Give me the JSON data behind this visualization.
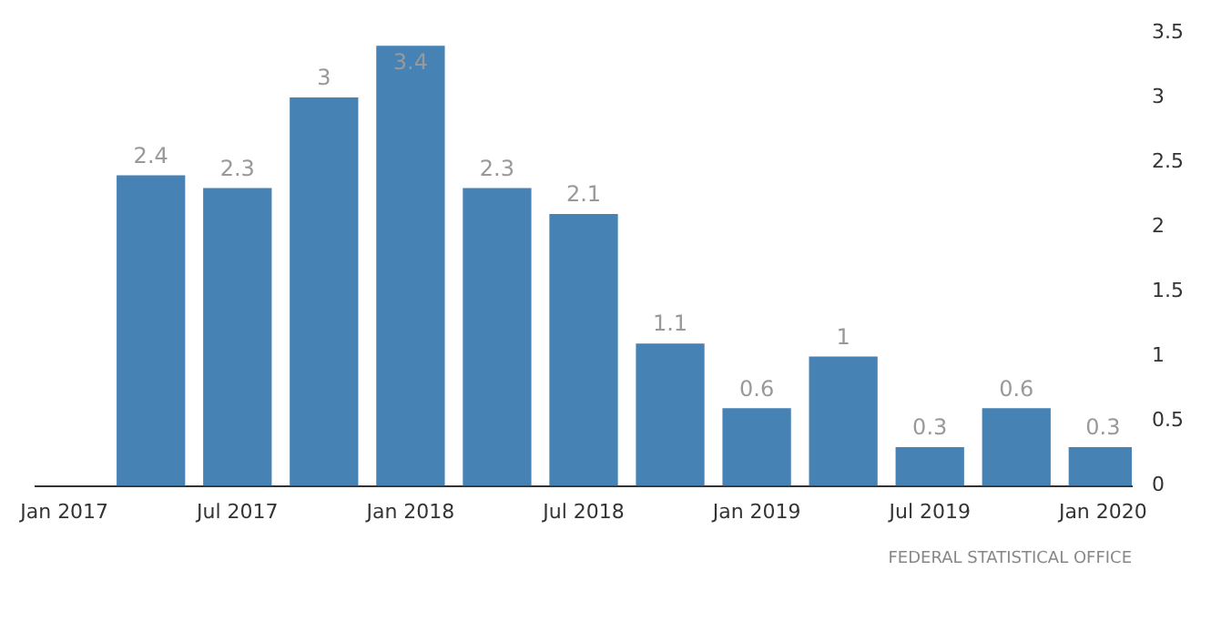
{
  "chart_data": {
    "type": "bar",
    "x": [
      "2017-04",
      "2017-07",
      "2017-10",
      "2018-01",
      "2018-04",
      "2018-07",
      "2018-10",
      "2019-01",
      "2019-04",
      "2019-07",
      "2019-10",
      "2020-01"
    ],
    "values": [
      2.4,
      2.3,
      3,
      3.4,
      2.3,
      2.1,
      1.1,
      0.6,
      1,
      0.3,
      0.6,
      0.3
    ],
    "color": "#4682b4",
    "data_labels": true,
    "xlim": [
      "2016-12",
      "2020-02"
    ],
    "xticks": [
      {
        "value": "2017-01",
        "label": "Jan 2017"
      },
      {
        "value": "2017-07",
        "label": "Jul 2017"
      },
      {
        "value": "2018-01",
        "label": "Jan 2018"
      },
      {
        "value": "2018-07",
        "label": "Jul 2018"
      },
      {
        "value": "2019-01",
        "label": "Jan 2019"
      },
      {
        "value": "2019-07",
        "label": "Jul 2019"
      },
      {
        "value": "2020-01",
        "label": "Jan 2020"
      }
    ],
    "ylim": [
      0,
      3.5
    ],
    "yticks": [
      0,
      0.5,
      1,
      1.5,
      2,
      2.5,
      3,
      3.5
    ],
    "grid": false,
    "legend": false,
    "annotations": [
      "FEDERAL STATISTICAL OFFICE"
    ]
  }
}
